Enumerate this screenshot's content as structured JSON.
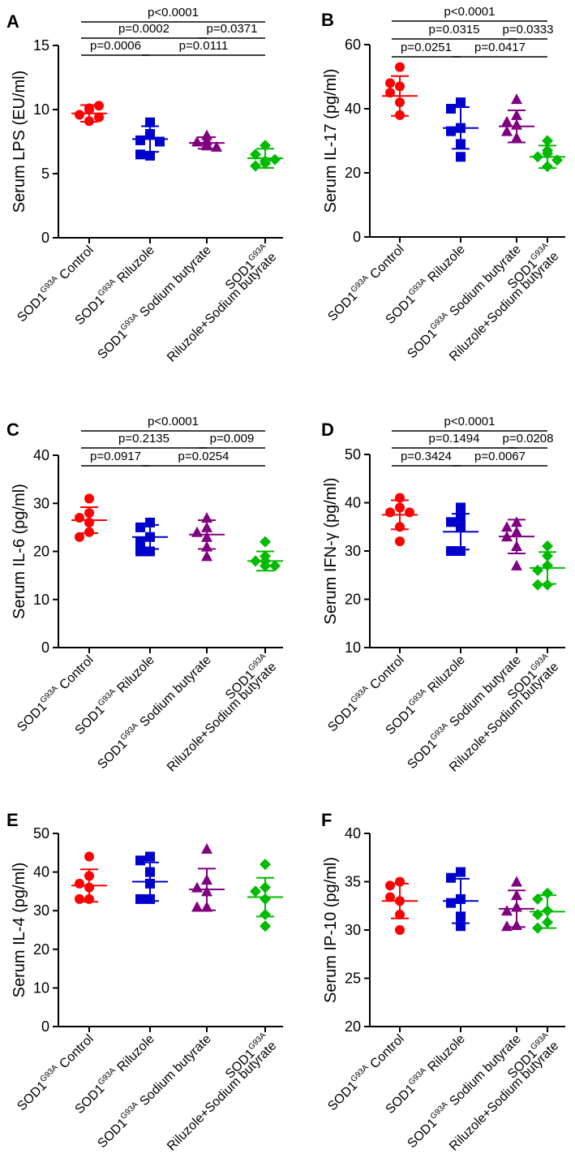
{
  "colors": {
    "group_colors": [
      "#ff0000",
      "#0000cc",
      "#800080",
      "#00bb00"
    ],
    "axis": "#000000"
  },
  "group_labels": [
    {
      "name": "Control",
      "lines": [
        [
          "SOD1",
          "G93A",
          " Control"
        ]
      ]
    },
    {
      "name": "Riluzole",
      "lines": [
        [
          "SOD1",
          "G93A",
          " Riluzole"
        ]
      ]
    },
    {
      "name": "Sodium butyrate",
      "lines": [
        [
          "SOD1",
          "G93A",
          " Sodium butyrate"
        ]
      ]
    },
    {
      "name": "Riluzole+Sodium butyrate",
      "lines": [
        [
          "SOD1",
          "G93A",
          ""
        ],
        [
          "Riluzole+Sodium butyrate",
          "",
          ""
        ]
      ]
    }
  ],
  "chart_data": [
    {
      "panel": "A",
      "type": "scatter",
      "ylabel": "Serum LPS (EU/ml)",
      "ylim": [
        0,
        15
      ],
      "yticks": [
        0,
        5,
        10,
        15
      ],
      "markers": [
        "circle",
        "square",
        "triangle",
        "diamond"
      ],
      "groups": [
        {
          "mean": 9.7,
          "sd": 0.65,
          "points": [
            9.1,
            9.6,
            10.0,
            10.3,
            9.4,
            10.1
          ]
        },
        {
          "mean": 7.7,
          "sd": 1.0,
          "points": [
            9.0,
            8.1,
            7.6,
            6.4,
            6.5,
            7.5
          ]
        },
        {
          "mean": 7.4,
          "sd": 0.45,
          "points": [
            8.0,
            7.5,
            7.2,
            7.1,
            7.6,
            7.3
          ]
        },
        {
          "mean": 6.2,
          "sd": 0.75,
          "points": [
            7.2,
            6.5,
            6.0,
            5.6,
            6.1,
            5.8
          ]
        }
      ],
      "comparisons": [
        {
          "label": "p<0.0001",
          "from": 0,
          "to": 3
        },
        {
          "label": "p=0.0002",
          "from": 0,
          "to": 2
        },
        {
          "label": "p=0.0371",
          "from": 2,
          "to": 3
        },
        {
          "label": "p=0.0006",
          "from": 0,
          "to": 1
        },
        {
          "label": "p=0.0111",
          "from": 1,
          "to": 3
        }
      ]
    },
    {
      "panel": "B",
      "type": "scatter",
      "ylabel": "Serum IL-17 (pg/ml)",
      "ylim": [
        0,
        60
      ],
      "yticks": [
        0,
        20,
        40,
        60
      ],
      "markers": [
        "circle",
        "square",
        "triangle",
        "diamond"
      ],
      "groups": [
        {
          "mean": 44,
          "sd": 6.2,
          "points": [
            53,
            47,
            45,
            42,
            38,
            48
          ]
        },
        {
          "mean": 34,
          "sd": 6.5,
          "points": [
            42,
            40,
            34,
            29,
            25,
            33
          ]
        },
        {
          "mean": 34.5,
          "sd": 5.0,
          "points": [
            43,
            38,
            35,
            33,
            31,
            36
          ]
        },
        {
          "mean": 25,
          "sd": 3.5,
          "points": [
            30,
            27,
            25,
            22,
            24,
            26
          ]
        }
      ],
      "comparisons": [
        {
          "label": "p<0.0001",
          "from": 0,
          "to": 3
        },
        {
          "label": "p=0.0315",
          "from": 0,
          "to": 2
        },
        {
          "label": "p=0.0333",
          "from": 2,
          "to": 3
        },
        {
          "label": "p=0.0251",
          "from": 0,
          "to": 1
        },
        {
          "label": "p=0.0417",
          "from": 1,
          "to": 3
        }
      ]
    },
    {
      "panel": "C",
      "type": "scatter",
      "ylabel": "Serum IL-6 (pg/ml)",
      "ylim": [
        0,
        40
      ],
      "yticks": [
        0,
        10,
        20,
        30,
        40
      ],
      "markers": [
        "circle",
        "square",
        "triangle",
        "diamond"
      ],
      "groups": [
        {
          "mean": 26.5,
          "sd": 2.7,
          "points": [
            31,
            28,
            27,
            24,
            23,
            26
          ]
        },
        {
          "mean": 23,
          "sd": 2.5,
          "points": [
            26,
            25,
            23,
            20,
            20,
            22
          ]
        },
        {
          "mean": 23.5,
          "sd": 3.0,
          "points": [
            27,
            25,
            24,
            21,
            19,
            23
          ]
        },
        {
          "mean": 18,
          "sd": 2.0,
          "points": [
            22,
            19,
            18,
            17,
            17,
            18
          ]
        }
      ],
      "comparisons": [
        {
          "label": "p<0.0001",
          "from": 0,
          "to": 3
        },
        {
          "label": "p=0.2135",
          "from": 0,
          "to": 2
        },
        {
          "label": "p=0.009",
          "from": 2,
          "to": 3
        },
        {
          "label": "p=0.0917",
          "from": 0,
          "to": 1
        },
        {
          "label": "p=0.0254",
          "from": 1,
          "to": 3
        }
      ]
    },
    {
      "panel": "D",
      "type": "scatter",
      "ylabel": "Serum IFN-γ (pg/ml)",
      "ylim": [
        10,
        50
      ],
      "yticks": [
        10,
        20,
        30,
        40,
        50
      ],
      "markers": [
        "circle",
        "square",
        "triangle",
        "diamond"
      ],
      "groups": [
        {
          "mean": 37.5,
          "sd": 3.0,
          "points": [
            41,
            39,
            38,
            35,
            32,
            38
          ]
        },
        {
          "mean": 34,
          "sd": 3.7,
          "points": [
            39,
            37,
            35,
            30,
            30,
            36
          ]
        },
        {
          "mean": 33,
          "sd": 3.5,
          "points": [
            36,
            35,
            34,
            31,
            27,
            33
          ]
        },
        {
          "mean": 26.5,
          "sd": 3.3,
          "points": [
            31,
            29,
            27,
            23,
            23,
            26
          ]
        }
      ],
      "comparisons": [
        {
          "label": "p<0.0001",
          "from": 0,
          "to": 3
        },
        {
          "label": "p=0.1494",
          "from": 0,
          "to": 2
        },
        {
          "label": "p=0.0208",
          "from": 2,
          "to": 3
        },
        {
          "label": "p=0.3424",
          "from": 0,
          "to": 1
        },
        {
          "label": "p=0.0067",
          "from": 1,
          "to": 3
        }
      ]
    },
    {
      "panel": "E",
      "type": "scatter",
      "ylabel": "Serum IL-4 (pg/ml)",
      "ylim": [
        0,
        50
      ],
      "yticks": [
        0,
        10,
        20,
        30,
        40,
        50
      ],
      "markers": [
        "circle",
        "square",
        "triangle",
        "diamond"
      ],
      "groups": [
        {
          "mean": 36.5,
          "sd": 4.2,
          "points": [
            44,
            39,
            37,
            33,
            33,
            36
          ]
        },
        {
          "mean": 37.5,
          "sd": 5.0,
          "points": [
            44,
            43,
            40,
            33,
            33,
            37
          ]
        },
        {
          "mean": 35.5,
          "sd": 5.4,
          "points": [
            46,
            38,
            36,
            31,
            31,
            35
          ]
        },
        {
          "mean": 33.5,
          "sd": 5.0,
          "points": [
            42,
            36,
            35,
            29,
            26,
            33
          ]
        }
      ],
      "comparisons": []
    },
    {
      "panel": "F",
      "type": "scatter",
      "ylabel": "Serum IP-10 (pg/ml)",
      "ylim": [
        20,
        40
      ],
      "yticks": [
        20,
        25,
        30,
        35,
        40
      ],
      "markers": [
        "circle",
        "square",
        "triangle",
        "diamond"
      ],
      "groups": [
        {
          "mean": 33,
          "sd": 1.8,
          "points": [
            35,
            34.6,
            33,
            31.6,
            30,
            33.4
          ]
        },
        {
          "mean": 33,
          "sd": 2.3,
          "points": [
            36,
            35.4,
            33.2,
            31.4,
            30.4,
            32.8
          ]
        },
        {
          "mean": 32.2,
          "sd": 1.9,
          "points": [
            35,
            33.6,
            32.4,
            30.5,
            30.4,
            32
          ]
        },
        {
          "mean": 31.9,
          "sd": 1.7,
          "points": [
            33.8,
            33.2,
            32,
            30.8,
            30.2,
            31.6
          ]
        }
      ],
      "comparisons": []
    }
  ]
}
